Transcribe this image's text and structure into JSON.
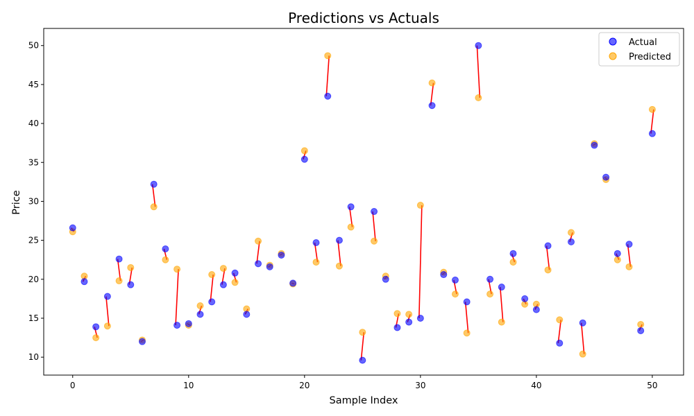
{
  "chart_data": {
    "type": "scatter",
    "title": "Predictions vs Actuals",
    "xlabel": "Sample Index",
    "ylabel": "Price",
    "xlim": [
      -2.5,
      52.7
    ],
    "ylim": [
      7.7,
      52.2
    ],
    "xticks": [
      0,
      10,
      20,
      30,
      40,
      50
    ],
    "yticks": [
      10,
      15,
      20,
      25,
      30,
      35,
      40,
      45,
      50
    ],
    "grid": false,
    "legend_position": "upper-right",
    "connector_color": "#ff0000",
    "x": [
      0,
      1,
      2,
      3,
      4,
      5,
      6,
      7,
      8,
      9,
      10,
      11,
      12,
      13,
      14,
      15,
      16,
      17,
      18,
      19,
      20,
      21,
      22,
      23,
      24,
      25,
      26,
      27,
      28,
      29,
      30,
      31,
      32,
      33,
      34,
      35,
      36,
      37,
      38,
      39,
      40,
      41,
      42,
      43,
      44,
      45,
      46,
      47,
      48,
      49,
      50
    ],
    "series": [
      {
        "name": "Actual",
        "color": "#0000ff",
        "values": [
          26.6,
          19.7,
          13.9,
          17.8,
          22.6,
          19.3,
          12.0,
          32.2,
          23.9,
          14.1,
          14.3,
          15.5,
          17.1,
          19.3,
          20.8,
          15.5,
          22.0,
          21.6,
          23.1,
          19.5,
          35.4,
          24.7,
          43.5,
          25.0,
          29.3,
          9.6,
          28.7,
          20.0,
          13.8,
          14.5,
          15.0,
          42.3,
          20.6,
          19.9,
          17.1,
          50.0,
          20.0,
          19.0,
          23.3,
          17.5,
          16.1,
          24.3,
          11.8,
          24.8,
          14.4,
          37.2,
          33.1,
          23.3,
          24.5,
          13.4,
          38.7
        ]
      },
      {
        "name": "Predicted",
        "color": "#ffa500",
        "values": [
          26.1,
          20.4,
          12.5,
          14.0,
          19.8,
          21.5,
          12.2,
          29.3,
          22.5,
          21.3,
          14.1,
          16.6,
          20.6,
          21.4,
          19.6,
          16.2,
          24.9,
          21.8,
          23.3,
          19.4,
          36.5,
          22.2,
          48.7,
          21.7,
          26.7,
          13.2,
          24.9,
          20.4,
          15.6,
          15.5,
          29.5,
          45.2,
          20.9,
          18.1,
          13.1,
          43.3,
          18.1,
          14.5,
          22.2,
          16.8,
          16.8,
          21.2,
          14.8,
          26.0,
          10.4,
          37.4,
          32.8,
          22.5,
          21.6,
          14.2,
          41.8
        ]
      }
    ]
  }
}
